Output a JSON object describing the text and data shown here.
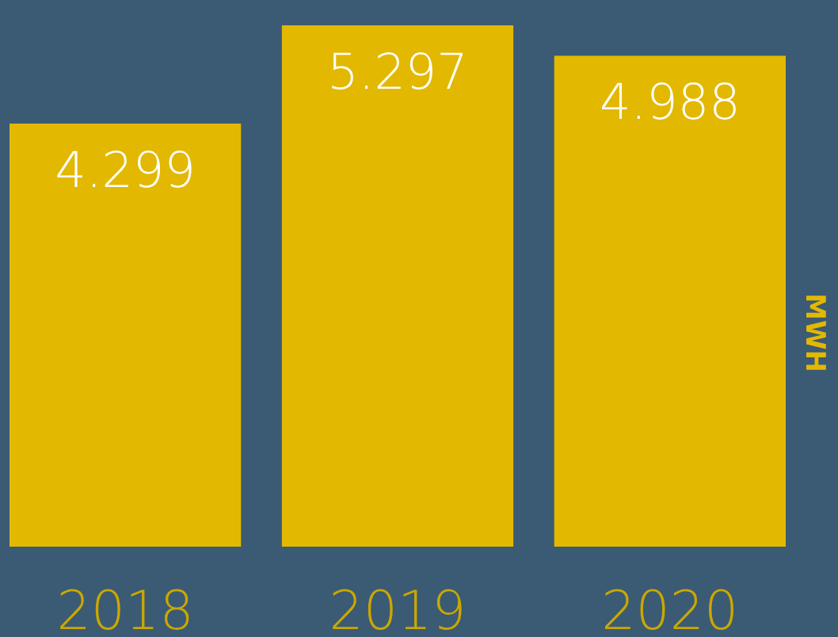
{
  "chart_data": {
    "type": "bar",
    "categories": [
      "2018",
      "2019",
      "2020"
    ],
    "values": [
      4.299,
      5.297,
      4.988
    ],
    "color": "#e3b800",
    "ylabel": "MWH",
    "data_labels": true
  }
}
